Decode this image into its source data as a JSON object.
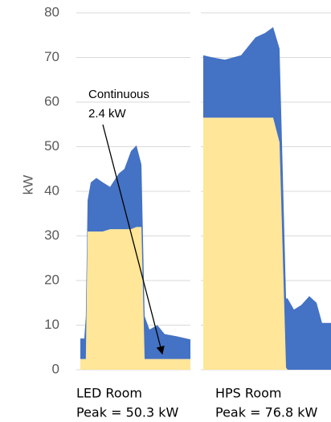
{
  "chart_data": [
    {
      "type": "area",
      "title": "LED Room",
      "subtitle": "Peak = 50.3 kW",
      "ylabel": "kW",
      "annotation": [
        "Continuous",
        "2.4 kW"
      ],
      "ylim": [
        0,
        80
      ],
      "yticks": [
        0,
        10,
        20,
        30,
        40,
        50,
        60,
        70,
        80
      ],
      "grid": true,
      "xlim": [
        0,
        100
      ],
      "x": [
        0,
        3.6,
        5,
        6.6,
        9.5,
        14.6,
        20.4,
        27,
        35,
        40,
        46,
        51,
        55.5,
        58.4,
        62.8,
        70,
        76.6,
        87.6,
        100
      ],
      "series": [
        {
          "color": "#FFE699",
          "values": [
            2.4,
            2.4,
            2.4,
            31,
            31,
            31,
            31,
            31.5,
            31.5,
            31.5,
            31.5,
            32,
            32,
            2.4,
            2.4,
            2.4,
            2.4,
            2.4,
            2.4
          ]
        },
        {
          "color": "#4472C4",
          "values": [
            4.6,
            4.6,
            9.6,
            7,
            11,
            12,
            11,
            9.5,
            12.5,
            13.5,
            17.5,
            18.3,
            14,
            9.6,
            6.6,
            7.6,
            5.6,
            5.1,
            4.4
          ]
        }
      ]
    },
    {
      "type": "area",
      "title": "HPS Room",
      "subtitle": "Peak = 76.8 kW",
      "ylim": [
        0,
        80
      ],
      "yticks": [
        0,
        10,
        20,
        30,
        40,
        50,
        60,
        70,
        80
      ],
      "grid": true,
      "xlim": [
        0,
        100
      ],
      "x": [
        0,
        7.5,
        17,
        29.6,
        40.9,
        48.4,
        54.7,
        59.7,
        64.8,
        66,
        71,
        76.7,
        83,
        88.7,
        93,
        100
      ],
      "series": [
        {
          "color": "#FFE699",
          "values": [
            56.5,
            56.5,
            56.5,
            56.5,
            56.5,
            56.5,
            56.5,
            51,
            0.5,
            0,
            0,
            0,
            0,
            0,
            0,
            0
          ]
        },
        {
          "color": "#4472C4",
          "values": [
            14,
            13.5,
            13,
            14,
            18,
            19,
            20.3,
            21,
            15.5,
            16,
            13.5,
            14.5,
            16.5,
            15,
            10.5,
            10.5
          ]
        }
      ]
    }
  ]
}
